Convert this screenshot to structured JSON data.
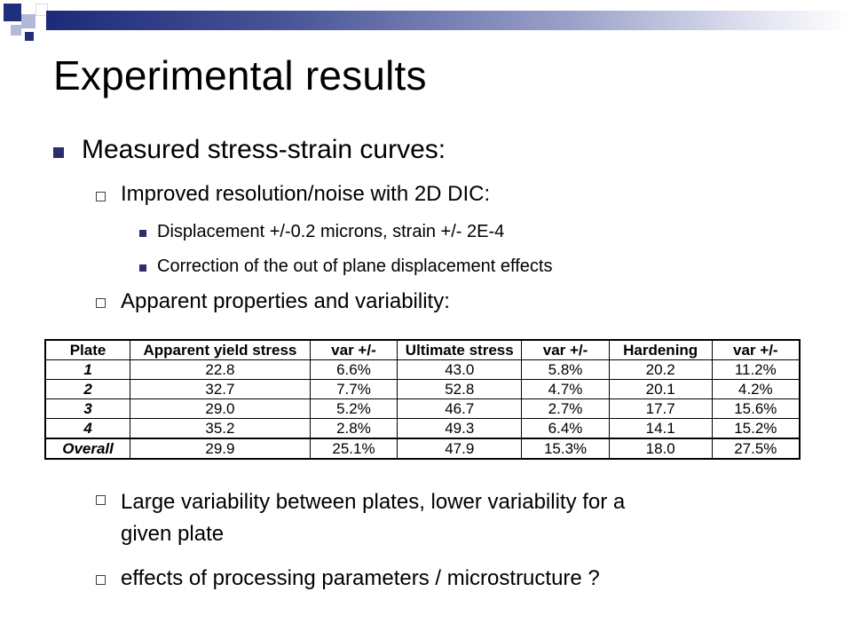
{
  "slide": {
    "title": "Experimental results",
    "bullet_main": "Measured stress-strain curves:",
    "sub1": "Improved resolution/noise with 2D DIC:",
    "sub1_items": [
      "Displacement +/-0.2 microns, strain +/- 2E-4",
      "Correction of the out of plane displacement effects"
    ],
    "sub2": "Apparent properties and variability:",
    "sub3_line1": "Large variability between plates, lower variability for a",
    "sub3_line2": "given plate",
    "sub4": "effects of processing parameters / microstructure ?"
  },
  "table": {
    "headers": [
      "Plate",
      "Apparent yield stress",
      "var +/-",
      "Ultimate stress",
      "var +/-",
      "Hardening",
      "var +/-"
    ],
    "rows": [
      [
        "1",
        "22.8",
        "6.6%",
        "43.0",
        "5.8%",
        "20.2",
        "11.2%"
      ],
      [
        "2",
        "32.7",
        "7.7%",
        "52.8",
        "4.7%",
        "20.1",
        "4.2%"
      ],
      [
        "3",
        "29.0",
        "5.2%",
        "46.7",
        "2.7%",
        "17.7",
        "15.6%"
      ],
      [
        "4",
        "35.2",
        "2.8%",
        "49.3",
        "6.4%",
        "14.1",
        "15.2%"
      ],
      [
        "Overall",
        "29.9",
        "25.1%",
        "47.9",
        "15.3%",
        "18.0",
        "27.5%"
      ]
    ]
  },
  "colors": {
    "header_bar": "#1c2a78",
    "bullet": "#2a2f6a"
  }
}
